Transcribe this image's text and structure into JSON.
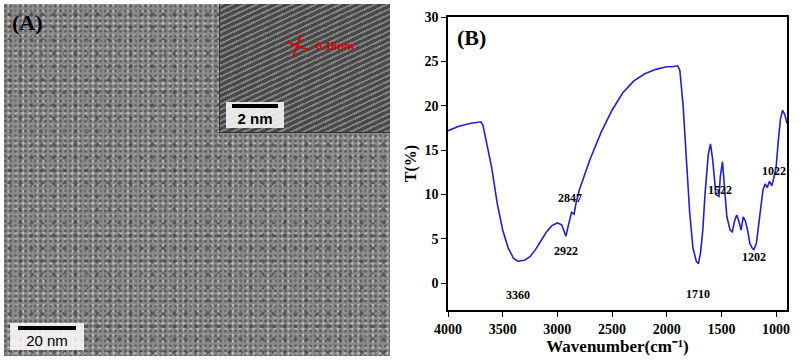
{
  "panel_a": {
    "label": "(A)",
    "scale_bar": "20 nm",
    "inset": {
      "scale_bar": "2 nm",
      "lattice_spacing": "0.18nm"
    }
  },
  "chart_data": {
    "type": "line",
    "title": "(B)",
    "x_label": "Wavenumber(cm⁻¹)",
    "y_label": "T(%)",
    "x": [
      4000,
      3900,
      3800,
      3700,
      3680,
      3650,
      3600,
      3550,
      3500,
      3450,
      3400,
      3360,
      3300,
      3250,
      3200,
      3150,
      3100,
      3050,
      3000,
      2960,
      2940,
      2922,
      2900,
      2870,
      2847,
      2830,
      2800,
      2700,
      2600,
      2500,
      2400,
      2300,
      2200,
      2100,
      2000,
      1950,
      1900,
      1880,
      1850,
      1820,
      1790,
      1760,
      1730,
      1710,
      1690,
      1670,
      1650,
      1620,
      1600,
      1580,
      1550,
      1522,
      1510,
      1490,
      1470,
      1450,
      1420,
      1400,
      1380,
      1360,
      1340,
      1320,
      1300,
      1280,
      1260,
      1240,
      1220,
      1202,
      1180,
      1160,
      1140,
      1120,
      1100,
      1080,
      1060,
      1040,
      1022,
      1000,
      980,
      960,
      940,
      920,
      900
    ],
    "values": [
      17.2,
      17.7,
      18.0,
      18.2,
      17.8,
      16.0,
      13.0,
      9.0,
      6.0,
      4.0,
      2.8,
      2.5,
      2.6,
      3.0,
      3.8,
      4.8,
      5.8,
      6.5,
      6.8,
      6.6,
      6.0,
      5.3,
      6.5,
      8.0,
      7.8,
      9.0,
      10.5,
      14.0,
      17.0,
      19.5,
      21.5,
      22.8,
      23.6,
      24.1,
      24.4,
      24.4,
      24.5,
      24.0,
      20.0,
      14.0,
      8.0,
      4.0,
      2.5,
      2.2,
      3.5,
      6.0,
      10.0,
      14.5,
      15.7,
      14.0,
      10.0,
      9.8,
      12.0,
      13.7,
      10.0,
      7.5,
      6.0,
      5.8,
      7.0,
      7.7,
      7.0,
      6.0,
      7.5,
      7.0,
      6.0,
      4.5,
      4.0,
      3.8,
      4.5,
      6.5,
      9.0,
      10.5,
      11.2,
      10.8,
      11.5,
      11.0,
      11.8,
      13.0,
      16.0,
      18.5,
      19.5,
      19.0,
      18.0
    ],
    "color": "#2020d0",
    "xlim": [
      4000,
      900
    ],
    "xticks": [
      4000,
      3500,
      3000,
      2500,
      2000,
      1500,
      1000
    ],
    "ylim": [
      -3,
      30
    ],
    "yticks": [
      0,
      5,
      10,
      15,
      20,
      25,
      30
    ],
    "grid": false,
    "annotations": [
      {
        "text": "3360",
        "x": 3360,
        "y": -1.3
      },
      {
        "text": "2922",
        "x": 2922,
        "y": 3.6
      },
      {
        "text": "2847",
        "x": 2880,
        "y": 9.6
      },
      {
        "text": "1710",
        "x": 1710,
        "y": -1.2
      },
      {
        "text": "1522",
        "x": 1510,
        "y": 10.5
      },
      {
        "text": "1202",
        "x": 1202,
        "y": 3.0
      },
      {
        "text": "1022",
        "x": 1022,
        "y": 12.6
      }
    ]
  }
}
